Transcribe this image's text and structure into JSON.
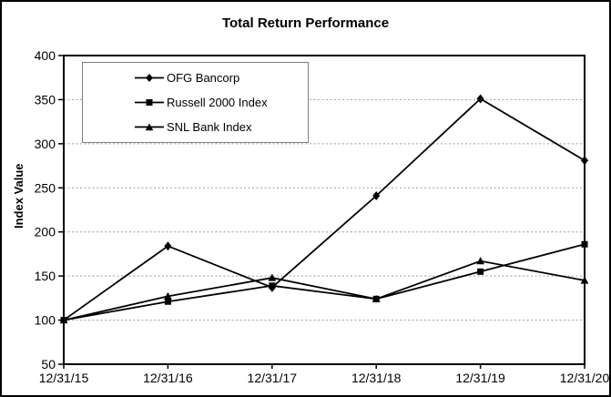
{
  "colors": {
    "series": "#000000",
    "gridline": "#9e9e9e",
    "axis": "#000000",
    "background": "#ffffff",
    "legend_border": "#808080"
  },
  "chart_data": {
    "type": "line",
    "title": "Total Return Performance",
    "xlabel": "",
    "ylabel": "Index Value",
    "categories": [
      "12/31/15",
      "12/31/16",
      "12/31/17",
      "12/31/18",
      "12/31/19",
      "12/31/20"
    ],
    "series": [
      {
        "name": "OFG Bancorp",
        "marker": "diamond",
        "color": "#000000",
        "values": [
          100,
          184,
          137,
          241,
          351,
          281
        ]
      },
      {
        "name": "Russell 2000 Index",
        "marker": "square",
        "color": "#000000",
        "values": [
          100,
          121,
          139,
          124,
          155,
          186
        ]
      },
      {
        "name": "SNL Bank Index",
        "marker": "triangle",
        "color": "#000000",
        "values": [
          100,
          127,
          148,
          124,
          167,
          145
        ]
      }
    ],
    "ylim": [
      50,
      400
    ],
    "y_ticks": [
      400,
      350,
      300,
      250,
      200,
      150,
      100,
      50
    ],
    "grid": "horizontal dotted gridlines at each 50; solid black plot border",
    "legend_position": "upper-left inside plot area"
  }
}
